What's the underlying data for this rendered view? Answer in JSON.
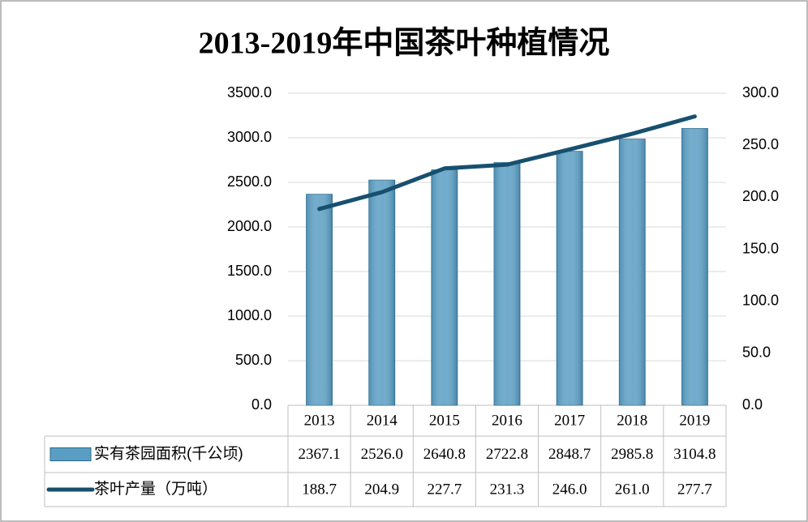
{
  "chart_data": {
    "type": "bar-line",
    "title": "2013-2019年中国茶叶种植情况",
    "categories": [
      "2013",
      "2014",
      "2015",
      "2016",
      "2017",
      "2018",
      "2019"
    ],
    "series": [
      {
        "name": "实有茶园面积(千公顷)",
        "type": "bar",
        "color": "#5b9ec4",
        "values": [
          2367.1,
          2526.0,
          2640.8,
          2722.8,
          2848.7,
          2985.8,
          3104.8
        ],
        "value_labels": [
          "2367.1",
          "2526.0",
          "2640.8",
          "2722.8",
          "2848.7",
          "2985.8",
          "3104.8"
        ]
      },
      {
        "name": "茶叶产量（万吨）",
        "type": "line",
        "axis": "y2",
        "color": "#17506f",
        "values": [
          188.7,
          204.9,
          227.7,
          231.3,
          246.0,
          261.0,
          277.7
        ],
        "value_labels": [
          "188.7",
          "204.9",
          "227.7",
          "231.3",
          "246.0",
          "261.0",
          "277.7"
        ]
      }
    ],
    "ylim": [
      0,
      3500
    ],
    "yticks": [
      {
        "value": 0,
        "label": "0.0"
      },
      {
        "value": 500,
        "label": "500.0"
      },
      {
        "value": 1000,
        "label": "1000.0"
      },
      {
        "value": 1500,
        "label": "1500.0"
      },
      {
        "value": 2000,
        "label": "2000.0"
      },
      {
        "value": 2500,
        "label": "2500.0"
      },
      {
        "value": 3000,
        "label": "3000.0"
      },
      {
        "value": 3500,
        "label": "3500.0"
      }
    ],
    "y2lim": [
      0,
      300
    ],
    "y2ticks": [
      {
        "value": 0,
        "label": "0.0"
      },
      {
        "value": 50,
        "label": "50.0"
      },
      {
        "value": 100,
        "label": "100.0"
      },
      {
        "value": 150,
        "label": "150.0"
      },
      {
        "value": 200,
        "label": "200.0"
      },
      {
        "value": 250,
        "label": "250.0"
      },
      {
        "value": 300,
        "label": "300.0"
      }
    ],
    "grid": true
  }
}
